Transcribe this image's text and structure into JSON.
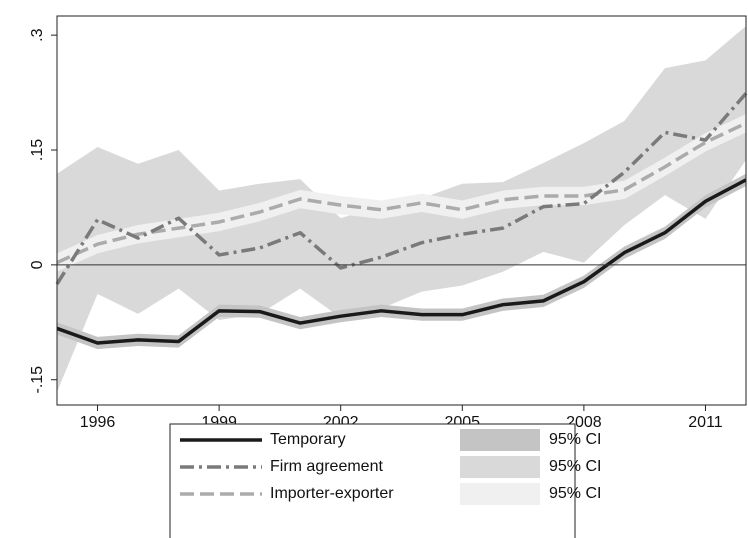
{
  "chart_data": {
    "type": "line",
    "x": [
      1995,
      1996,
      1997,
      1998,
      1999,
      2000,
      2001,
      2002,
      2003,
      2004,
      2005,
      2006,
      2007,
      2008,
      2009,
      2010,
      2011,
      2012
    ],
    "xlim": [
      1995,
      2012
    ],
    "xticks": [
      1996,
      1999,
      2002,
      2005,
      2008,
      2011
    ],
    "ylim": [
      -0.183,
      0.325
    ],
    "yticks": [
      {
        "value": -0.15,
        "label": "-.15"
      },
      0,
      {
        "value": 0.15,
        "label": ".15"
      },
      {
        "value": 0.3,
        "label": ".3"
      }
    ],
    "reference_line": 0,
    "series": [
      {
        "name": "Temporary",
        "color": "#1a1a1a",
        "style": "solid",
        "width": 3.5,
        "values": [
          -0.083,
          -0.102,
          -0.098,
          -0.1,
          -0.06,
          -0.061,
          -0.076,
          -0.067,
          -0.06,
          -0.065,
          -0.065,
          -0.052,
          -0.047,
          -0.022,
          0.016,
          0.042,
          0.083,
          0.111
        ],
        "ci": {
          "name": "95% CI",
          "color": "#c4c4c4",
          "lower": [
            -0.091,
            -0.11,
            -0.106,
            -0.108,
            -0.068,
            -0.069,
            -0.084,
            -0.075,
            -0.068,
            -0.073,
            -0.073,
            -0.06,
            -0.055,
            -0.03,
            0.008,
            0.034,
            0.075,
            0.103
          ],
          "upper": [
            -0.075,
            -0.094,
            -0.09,
            -0.092,
            -0.052,
            -0.053,
            -0.068,
            -0.059,
            -0.052,
            -0.057,
            -0.057,
            -0.044,
            -0.039,
            -0.014,
            0.024,
            0.05,
            0.091,
            0.119
          ]
        }
      },
      {
        "name": "Firm agreement",
        "color": "#7a7a7a",
        "style": "dashdot",
        "width": 3.5,
        "values": [
          -0.025,
          0.059,
          0.035,
          0.061,
          0.013,
          0.022,
          0.042,
          -0.004,
          0.01,
          0.029,
          0.04,
          0.048,
          0.076,
          0.08,
          0.121,
          0.173,
          0.163,
          0.224
        ],
        "ci": {
          "name": "95% CI",
          "color": "#d9d9d9",
          "lower": [
            -0.166,
            -0.038,
            -0.064,
            -0.031,
            -0.072,
            -0.064,
            -0.031,
            -0.069,
            -0.057,
            -0.035,
            -0.027,
            -0.009,
            0.017,
            0.003,
            0.052,
            0.091,
            0.06,
            0.137
          ],
          "upper": [
            0.119,
            0.154,
            0.132,
            0.15,
            0.097,
            0.106,
            0.112,
            0.061,
            0.077,
            0.087,
            0.106,
            0.108,
            0.133,
            0.159,
            0.188,
            0.257,
            0.267,
            0.312
          ]
        }
      },
      {
        "name": "Importer-exporter",
        "color": "#ababab",
        "style": "dash",
        "width": 3.5,
        "values": [
          0.003,
          0.027,
          0.04,
          0.048,
          0.056,
          0.069,
          0.086,
          0.078,
          0.072,
          0.081,
          0.072,
          0.085,
          0.09,
          0.09,
          0.098,
          0.128,
          0.16,
          0.185
        ],
        "ci": {
          "name": "95% CI",
          "color": "#f0f0f0",
          "lower": [
            -0.009,
            0.015,
            0.028,
            0.036,
            0.044,
            0.057,
            0.074,
            0.066,
            0.06,
            0.069,
            0.06,
            0.073,
            0.078,
            0.078,
            0.086,
            0.116,
            0.148,
            0.173
          ],
          "upper": [
            0.015,
            0.039,
            0.052,
            0.06,
            0.068,
            0.081,
            0.098,
            0.09,
            0.084,
            0.093,
            0.084,
            0.097,
            0.102,
            0.102,
            0.11,
            0.14,
            0.172,
            0.197
          ]
        }
      }
    ]
  }
}
